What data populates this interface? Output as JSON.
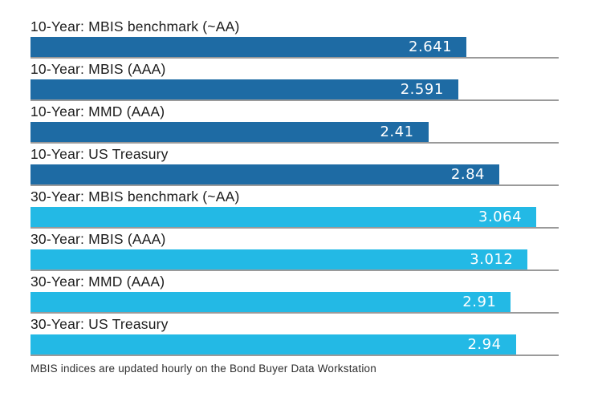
{
  "chart_data": {
    "type": "bar",
    "orientation": "horizontal",
    "title": "",
    "xlabel": "",
    "ylabel": "",
    "xlim": [
      0,
      3.2
    ],
    "grid": false,
    "legend": false,
    "categories": [
      "10-Year: MBIS benchmark (~AA)",
      "10-Year: MBIS (AAA)",
      "10-Year: MMD (AAA)",
      "10-Year: US Treasury",
      "30-Year: MBIS benchmark (~AA)",
      "30-Year: MBIS (AAA)",
      "30-Year: MMD (AAA)",
      "30-Year: US Treasury"
    ],
    "values": [
      2.641,
      2.591,
      2.41,
      2.84,
      3.064,
      3.012,
      2.91,
      2.94
    ],
    "value_labels": [
      "2.641",
      "2.591",
      "2.41",
      "2.84",
      "3.064",
      "3.012",
      "2.91",
      "2.94"
    ],
    "footnote": "MBIS indices are updated hourly on the Bond Buyer Data Workstation"
  },
  "colors": {
    "bar_10yr": "#1e6ba4",
    "bar_30yr": "#23b9e5",
    "baseline": "#9a9a9a",
    "label_text": "#1c1c1c",
    "value_text": "#ffffff"
  },
  "rows": [
    {
      "label": "10-Year: MBIS benchmark (~AA)",
      "value": 2.641,
      "value_label": "2.641",
      "group": "10-Year"
    },
    {
      "label": "10-Year: MBIS (AAA)",
      "value": 2.591,
      "value_label": "2.591",
      "group": "10-Year"
    },
    {
      "label": "10-Year: MMD (AAA)",
      "value": 2.41,
      "value_label": "2.41",
      "group": "10-Year"
    },
    {
      "label": "10-Year: US Treasury",
      "value": 2.84,
      "value_label": "2.84",
      "group": "10-Year"
    },
    {
      "label": "30-Year: MBIS benchmark (~AA)",
      "value": 3.064,
      "value_label": "3.064",
      "group": "30-Year"
    },
    {
      "label": "30-Year: MBIS (AAA)",
      "value": 3.012,
      "value_label": "3.012",
      "group": "30-Year"
    },
    {
      "label": "30-Year: MMD (AAA)",
      "value": 2.91,
      "value_label": "2.91",
      "group": "30-Year"
    },
    {
      "label": "30-Year: US Treasury",
      "value": 2.94,
      "value_label": "2.94",
      "group": "30-Year"
    }
  ],
  "footer": {
    "text": "MBIS indices are updated hourly on the Bond Buyer Data Workstation"
  }
}
